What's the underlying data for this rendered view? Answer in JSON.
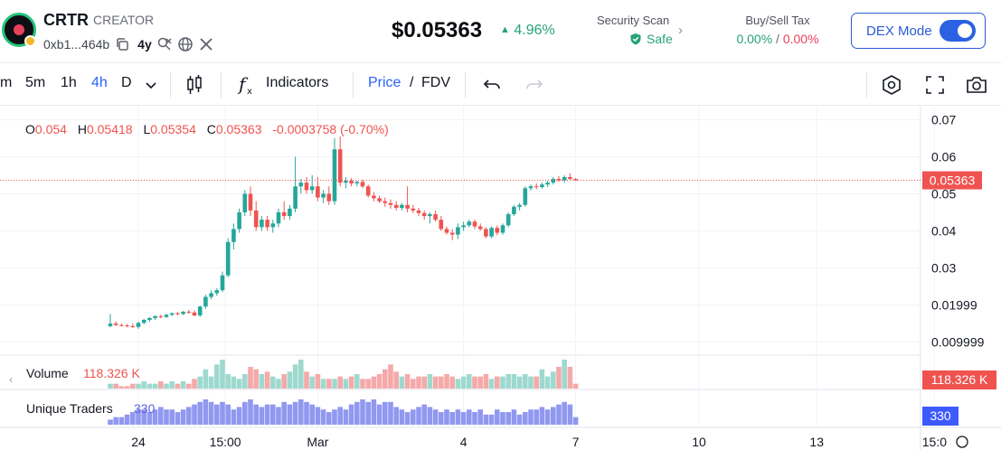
{
  "header": {
    "token_name": "CRTR",
    "token_tag": "CREATOR",
    "address": "0xb1...464b",
    "age": "4y",
    "price": "$0.05363",
    "change": "4.96%",
    "security": {
      "label": "Security Scan",
      "value": "Safe"
    },
    "tax": {
      "label": "Buy/Sell Tax",
      "buy": "0.00%",
      "separator": "/",
      "sell": "0.00%"
    },
    "dex_mode": {
      "label": "DEX Mode",
      "enabled": true
    }
  },
  "toolbar": {
    "intervals": [
      "m",
      "5m",
      "1h",
      "4h",
      "D"
    ],
    "active_interval": "4h",
    "indicators_label": "Indicators",
    "price_label": "Price",
    "price_sep": "/",
    "fdv_label": "FDV"
  },
  "colors": {
    "up": "#26a69a",
    "down": "#ef5350",
    "accent": "#2962ff",
    "volume_up": "#9ed9cf",
    "volume_down": "#f5a9a9",
    "traders": "#9198f0"
  },
  "chart_data": {
    "type": "candlestick",
    "ohlc_legend": {
      "o_label": "O",
      "o": "0.054",
      "h_label": "H",
      "h": "0.05418",
      "l_label": "L",
      "l": "0.05354",
      "c_label": "C",
      "c": "0.05363",
      "change": "-0.0003758 (-0.70%)"
    },
    "y_ticks": [
      "0.07",
      "0.06",
      "0.05",
      "0.04",
      "0.03",
      "0.01999",
      "0.009999"
    ],
    "y_tick_values": [
      0.07,
      0.06,
      0.05,
      0.04,
      0.03,
      0.02,
      0.01
    ],
    "ylim": [
      0.0065,
      0.0735
    ],
    "last_price_label": "0.05363",
    "last_price": 0.05363,
    "x_ticks": [
      "24",
      "15:00",
      "Mar",
      "4",
      "7",
      "10",
      "13",
      "15:0"
    ],
    "x_tick_index": [
      5,
      20.5,
      37,
      63,
      83,
      105,
      126,
      147
    ],
    "candles": [
      [
        0.0143,
        0.0176,
        0.014,
        0.015
      ],
      [
        0.015,
        0.0156,
        0.0144,
        0.0146
      ],
      [
        0.0146,
        0.015,
        0.0142,
        0.0145
      ],
      [
        0.0145,
        0.0149,
        0.014,
        0.0143
      ],
      [
        0.0143,
        0.015,
        0.0138,
        0.0141
      ],
      [
        0.0141,
        0.0155,
        0.0136,
        0.0152
      ],
      [
        0.0152,
        0.0163,
        0.0148,
        0.016
      ],
      [
        0.016,
        0.0168,
        0.0155,
        0.0165
      ],
      [
        0.0165,
        0.0172,
        0.016,
        0.017
      ],
      [
        0.017,
        0.0174,
        0.0164,
        0.0168
      ],
      [
        0.0168,
        0.0176,
        0.0165,
        0.0174
      ],
      [
        0.0174,
        0.018,
        0.017,
        0.0178
      ],
      [
        0.0178,
        0.0181,
        0.0172,
        0.0176
      ],
      [
        0.0176,
        0.0184,
        0.0173,
        0.0182
      ],
      [
        0.0182,
        0.0187,
        0.0176,
        0.018
      ],
      [
        0.018,
        0.0186,
        0.017,
        0.0172
      ],
      [
        0.0172,
        0.0198,
        0.0168,
        0.0196
      ],
      [
        0.0196,
        0.0228,
        0.019,
        0.0222
      ],
      [
        0.0222,
        0.024,
        0.0215,
        0.0232
      ],
      [
        0.0232,
        0.0245,
        0.0225,
        0.024
      ],
      [
        0.024,
        0.029,
        0.0235,
        0.028
      ],
      [
        0.028,
        0.038,
        0.0275,
        0.037
      ],
      [
        0.037,
        0.042,
        0.035,
        0.0405
      ],
      [
        0.0405,
        0.046,
        0.0395,
        0.045
      ],
      [
        0.045,
        0.051,
        0.044,
        0.05
      ],
      [
        0.05,
        0.052,
        0.044,
        0.0455
      ],
      [
        0.0455,
        0.048,
        0.04,
        0.041
      ],
      [
        0.041,
        0.044,
        0.04,
        0.043
      ],
      [
        0.043,
        0.044,
        0.04,
        0.041
      ],
      [
        0.041,
        0.043,
        0.0395,
        0.042
      ],
      [
        0.042,
        0.046,
        0.041,
        0.045
      ],
      [
        0.045,
        0.048,
        0.043,
        0.044
      ],
      [
        0.044,
        0.047,
        0.043,
        0.046
      ],
      [
        0.046,
        0.06,
        0.045,
        0.052
      ],
      [
        0.052,
        0.054,
        0.05,
        0.053
      ],
      [
        0.053,
        0.0545,
        0.05,
        0.051
      ],
      [
        0.051,
        0.055,
        0.05,
        0.052
      ],
      [
        0.052,
        0.0545,
        0.048,
        0.049
      ],
      [
        0.049,
        0.051,
        0.0475,
        0.05
      ],
      [
        0.05,
        0.052,
        0.047,
        0.048
      ],
      [
        0.048,
        0.065,
        0.047,
        0.062
      ],
      [
        0.062,
        0.0655,
        0.052,
        0.053
      ],
      [
        0.053,
        0.0545,
        0.0515,
        0.0535
      ],
      [
        0.0535,
        0.0542,
        0.052,
        0.0528
      ],
      [
        0.0528,
        0.0535,
        0.052,
        0.0532
      ],
      [
        0.0532,
        0.0538,
        0.0515,
        0.052
      ],
      [
        0.052,
        0.0525,
        0.049,
        0.0495
      ],
      [
        0.0495,
        0.0505,
        0.048,
        0.0488
      ],
      [
        0.0488,
        0.0495,
        0.0475,
        0.048
      ],
      [
        0.048,
        0.049,
        0.0465,
        0.0475
      ],
      [
        0.0475,
        0.0485,
        0.046,
        0.047
      ],
      [
        0.047,
        0.048,
        0.0455,
        0.0462
      ],
      [
        0.0462,
        0.0475,
        0.0455,
        0.047
      ],
      [
        0.047,
        0.052,
        0.045,
        0.046
      ],
      [
        0.046,
        0.047,
        0.0448,
        0.0455
      ],
      [
        0.0455,
        0.0462,
        0.044,
        0.0448
      ],
      [
        0.0448,
        0.0455,
        0.043,
        0.044
      ],
      [
        0.044,
        0.045,
        0.042,
        0.0445
      ],
      [
        0.0445,
        0.0455,
        0.0425,
        0.043
      ],
      [
        0.043,
        0.044,
        0.04,
        0.0405
      ],
      [
        0.0405,
        0.0412,
        0.039,
        0.0395
      ],
      [
        0.0395,
        0.0405,
        0.0375,
        0.039
      ],
      [
        0.039,
        0.042,
        0.0378,
        0.041
      ],
      [
        0.041,
        0.0425,
        0.04,
        0.0415
      ],
      [
        0.0415,
        0.043,
        0.041,
        0.0425
      ],
      [
        0.0425,
        0.043,
        0.0405,
        0.0412
      ],
      [
        0.0412,
        0.042,
        0.04,
        0.0405
      ],
      [
        0.0405,
        0.041,
        0.038,
        0.0385
      ],
      [
        0.0385,
        0.0412,
        0.038,
        0.0408
      ],
      [
        0.0408,
        0.0415,
        0.0388,
        0.0395
      ],
      [
        0.0395,
        0.042,
        0.039,
        0.0415
      ],
      [
        0.0415,
        0.045,
        0.041,
        0.0445
      ],
      [
        0.0445,
        0.047,
        0.044,
        0.0465
      ],
      [
        0.0465,
        0.0475,
        0.0455,
        0.047
      ],
      [
        0.047,
        0.052,
        0.0465,
        0.0515
      ],
      [
        0.0515,
        0.0525,
        0.0508,
        0.052
      ],
      [
        0.052,
        0.0528,
        0.0512,
        0.0518
      ],
      [
        0.0518,
        0.053,
        0.0514,
        0.0525
      ],
      [
        0.0525,
        0.0535,
        0.0518,
        0.053
      ],
      [
        0.053,
        0.0545,
        0.0525,
        0.054
      ],
      [
        0.054,
        0.0548,
        0.0532,
        0.0536
      ],
      [
        0.0536,
        0.055,
        0.053,
        0.0545
      ],
      [
        0.0545,
        0.0555,
        0.0538,
        0.054
      ],
      [
        0.054,
        0.0542,
        0.0535,
        0.05363
      ]
    ],
    "volume_label": "Volume",
    "volume_value": "118.326 K",
    "volume": [
      2,
      2,
      1,
      1,
      2,
      2,
      3,
      2,
      2,
      3,
      2,
      3,
      2,
      3,
      2,
      4,
      5,
      8,
      5,
      10,
      12,
      6,
      5,
      4,
      6,
      9,
      8,
      6,
      7,
      5,
      4,
      6,
      7,
      10,
      12,
      7,
      5,
      6,
      4,
      4,
      4,
      5,
      4,
      5,
      6,
      4,
      4,
      5,
      6,
      8,
      10,
      7,
      5,
      6,
      4,
      5,
      5,
      6,
      5,
      5,
      6,
      5,
      4,
      5,
      6,
      5,
      5,
      6,
      4,
      5,
      5,
      6,
      6,
      5,
      6,
      5,
      5,
      8,
      5,
      7,
      9,
      12,
      9,
      2
    ],
    "traders_label": "Unique Traders",
    "traders_value": "330",
    "traders": [
      2,
      3,
      3,
      4,
      5,
      6,
      6,
      5,
      6,
      7,
      6,
      6,
      5,
      6,
      7,
      8,
      9,
      10,
      9,
      8,
      9,
      8,
      6,
      7,
      9,
      10,
      8,
      7,
      8,
      8,
      7,
      9,
      8,
      9,
      10,
      9,
      8,
      7,
      6,
      5,
      6,
      7,
      6,
      8,
      9,
      10,
      9,
      10,
      8,
      9,
      9,
      7,
      6,
      5,
      6,
      7,
      8,
      7,
      6,
      5,
      6,
      5,
      6,
      5,
      6,
      5,
      6,
      4,
      4,
      6,
      5,
      5,
      6,
      4,
      5,
      6,
      6,
      7,
      6,
      7,
      8,
      9,
      8,
      3
    ]
  }
}
